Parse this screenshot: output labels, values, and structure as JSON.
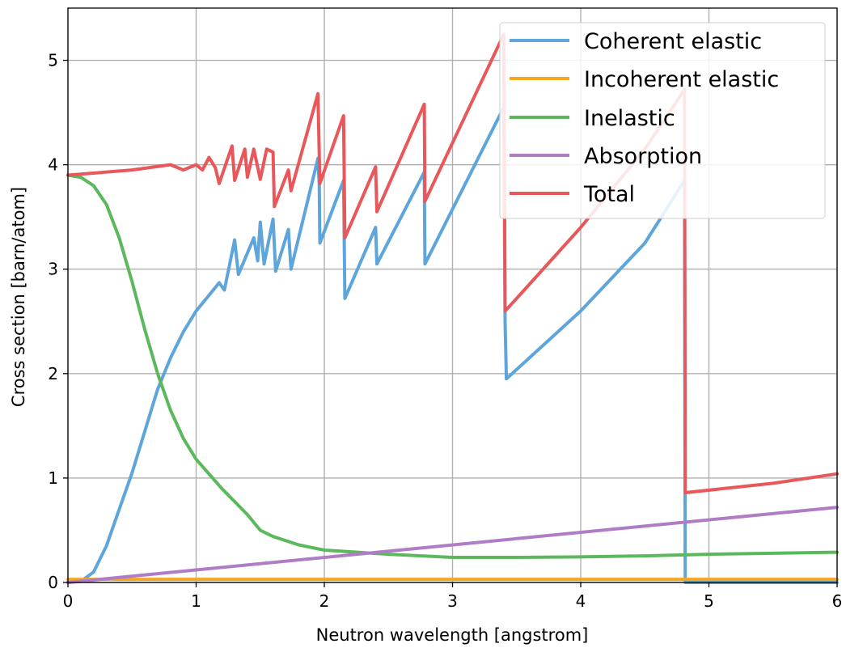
{
  "chart_data": {
    "type": "line",
    "title": "",
    "xlabel": "Neutron wavelength [angstrom]",
    "ylabel": "Cross section [barn/atom]",
    "xlim": [
      0,
      6
    ],
    "ylim": [
      0,
      5.5
    ],
    "xticks": [
      "0",
      "1",
      "2",
      "3",
      "4",
      "5",
      "6"
    ],
    "yticks": [
      "0",
      "1",
      "2",
      "3",
      "4",
      "5"
    ],
    "grid": true,
    "legend_position": "top-right",
    "series": [
      {
        "name": "Coherent elastic",
        "color": "#5da5da",
        "points": [
          [
            0,
            0
          ],
          [
            0.1,
            0.01
          ],
          [
            0.2,
            0.1
          ],
          [
            0.3,
            0.35
          ],
          [
            0.4,
            0.7
          ],
          [
            0.5,
            1.05
          ],
          [
            0.6,
            1.45
          ],
          [
            0.7,
            1.85
          ],
          [
            0.8,
            2.15
          ],
          [
            0.9,
            2.4
          ],
          [
            1.0,
            2.6
          ],
          [
            1.1,
            2.75
          ],
          [
            1.18,
            2.87
          ],
          [
            1.22,
            2.8
          ],
          [
            1.3,
            3.28
          ],
          [
            1.33,
            2.95
          ],
          [
            1.45,
            3.3
          ],
          [
            1.48,
            3.08
          ],
          [
            1.5,
            3.45
          ],
          [
            1.53,
            3.05
          ],
          [
            1.6,
            3.48
          ],
          [
            1.62,
            2.98
          ],
          [
            1.72,
            3.38
          ],
          [
            1.74,
            3.0
          ],
          [
            1.95,
            4.06
          ],
          [
            1.96,
            3.82
          ],
          [
            1.965,
            3.25
          ],
          [
            2.15,
            3.85
          ],
          [
            2.16,
            2.72
          ],
          [
            2.4,
            3.4
          ],
          [
            2.41,
            3.05
          ],
          [
            2.78,
            3.93
          ],
          [
            2.785,
            3.05
          ],
          [
            3.4,
            4.55
          ],
          [
            3.41,
            2.5
          ],
          [
            3.42,
            1.95
          ],
          [
            4.0,
            2.6
          ],
          [
            4.5,
            3.25
          ],
          [
            4.81,
            3.85
          ],
          [
            4.815,
            0
          ],
          [
            6.0,
            0
          ]
        ]
      },
      {
        "name": "Incoherent elastic",
        "color": "#f5a623",
        "points": [
          [
            0,
            0.03
          ],
          [
            6,
            0.03
          ]
        ]
      },
      {
        "name": "Inelastic",
        "color": "#5cb85c",
        "points": [
          [
            0,
            3.9
          ],
          [
            0.1,
            3.88
          ],
          [
            0.2,
            3.8
          ],
          [
            0.3,
            3.62
          ],
          [
            0.4,
            3.3
          ],
          [
            0.5,
            2.88
          ],
          [
            0.6,
            2.42
          ],
          [
            0.7,
            2.0
          ],
          [
            0.8,
            1.65
          ],
          [
            0.9,
            1.38
          ],
          [
            1.0,
            1.18
          ],
          [
            1.2,
            0.9
          ],
          [
            1.4,
            0.65
          ],
          [
            1.5,
            0.5
          ],
          [
            1.6,
            0.44
          ],
          [
            1.8,
            0.36
          ],
          [
            2.0,
            0.31
          ],
          [
            2.5,
            0.27
          ],
          [
            3.0,
            0.24
          ],
          [
            3.5,
            0.24
          ],
          [
            4.0,
            0.245
          ],
          [
            4.5,
            0.255
          ],
          [
            5.0,
            0.27
          ],
          [
            5.5,
            0.28
          ],
          [
            6.0,
            0.29
          ]
        ]
      },
      {
        "name": "Absorption",
        "color": "#b07cc6",
        "points": [
          [
            0,
            0
          ],
          [
            6,
            0.72
          ]
        ]
      },
      {
        "name": "Total",
        "color": "#e8575a",
        "points": [
          [
            0,
            3.9
          ],
          [
            0.5,
            3.95
          ],
          [
            0.8,
            4.0
          ],
          [
            0.9,
            3.95
          ],
          [
            1.0,
            4.0
          ],
          [
            1.05,
            3.95
          ],
          [
            1.1,
            4.07
          ],
          [
            1.15,
            3.97
          ],
          [
            1.18,
            3.82
          ],
          [
            1.28,
            4.18
          ],
          [
            1.3,
            3.85
          ],
          [
            1.38,
            4.15
          ],
          [
            1.4,
            3.88
          ],
          [
            1.45,
            4.15
          ],
          [
            1.5,
            3.86
          ],
          [
            1.55,
            4.15
          ],
          [
            1.6,
            4.12
          ],
          [
            1.61,
            3.6
          ],
          [
            1.72,
            3.95
          ],
          [
            1.74,
            3.75
          ],
          [
            1.95,
            4.68
          ],
          [
            1.965,
            3.82
          ],
          [
            2.15,
            4.47
          ],
          [
            2.16,
            3.3
          ],
          [
            2.4,
            3.98
          ],
          [
            2.41,
            3.55
          ],
          [
            2.78,
            4.58
          ],
          [
            2.785,
            3.65
          ],
          [
            3.4,
            5.25
          ],
          [
            3.41,
            2.6
          ],
          [
            3.5,
            2.72
          ],
          [
            4.0,
            3.4
          ],
          [
            4.5,
            4.15
          ],
          [
            4.81,
            4.72
          ],
          [
            4.815,
            0.86
          ],
          [
            5.5,
            0.95
          ],
          [
            6.0,
            1.04
          ]
        ]
      }
    ]
  }
}
